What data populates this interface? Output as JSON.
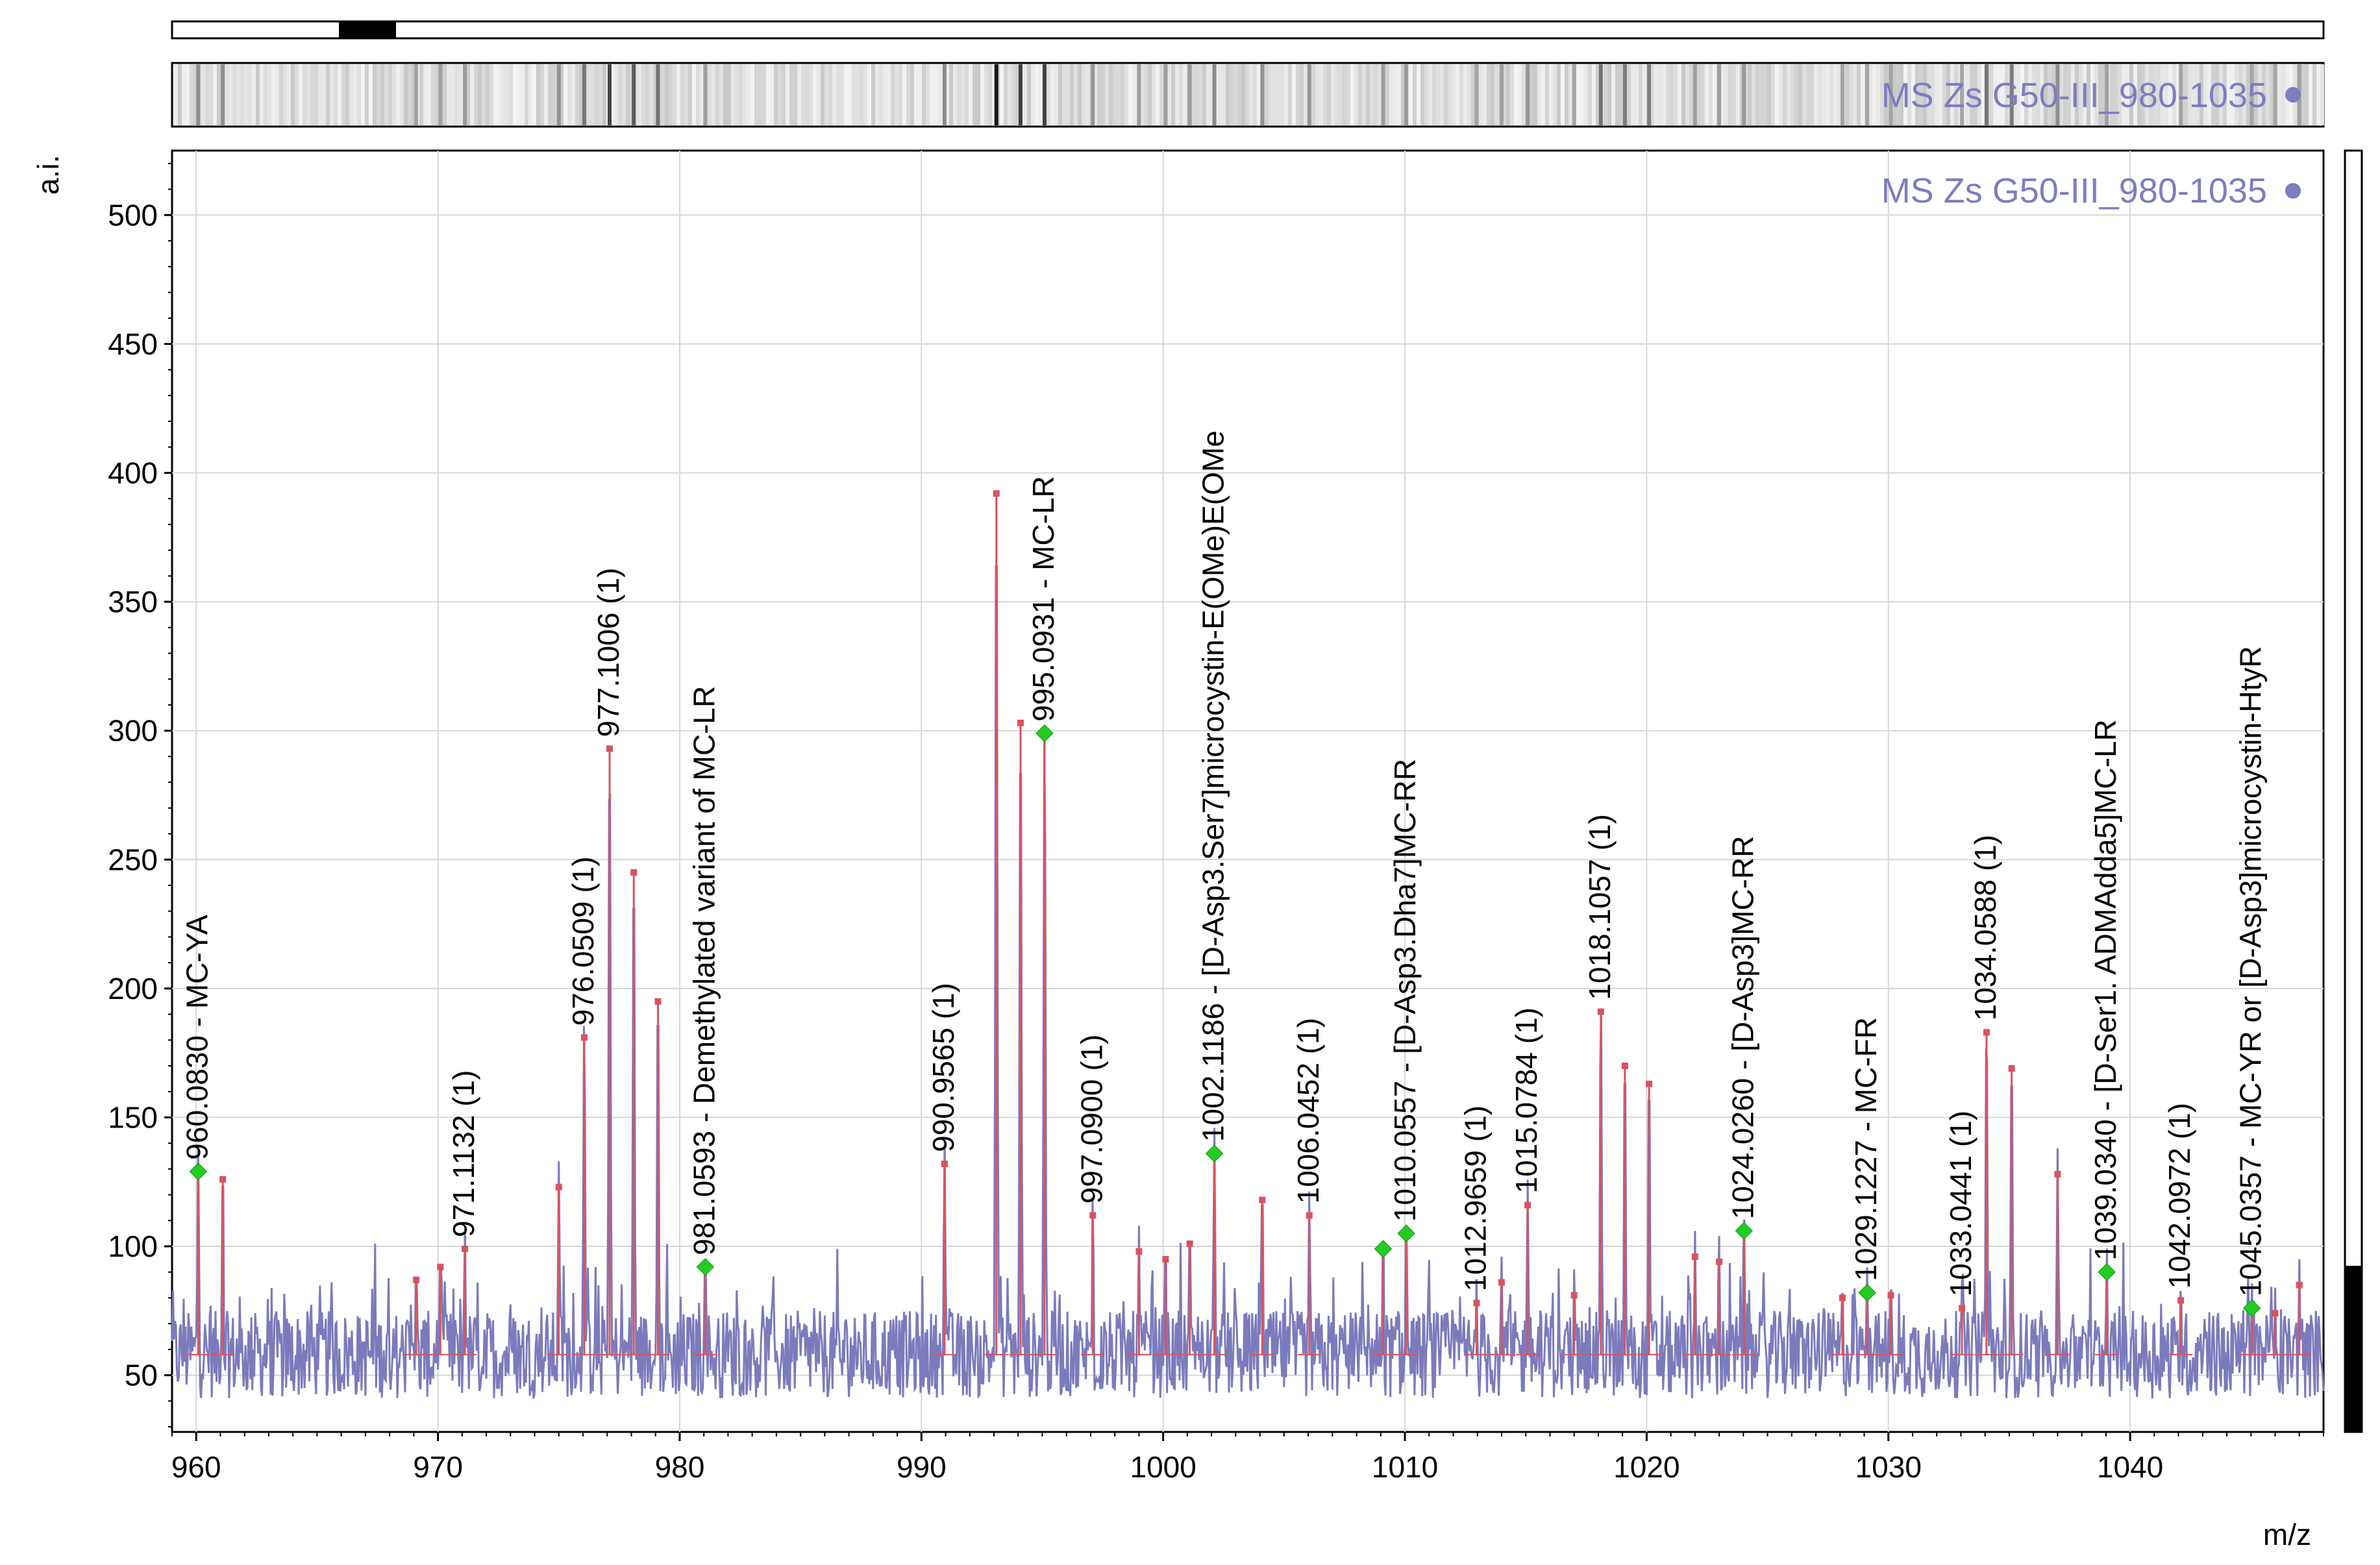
{
  "chart_data": {
    "type": "line",
    "title": "MS Zs G50-III_980-1035",
    "xlabel": "m/z",
    "ylabel": "a.i.",
    "xlim": [
      959,
      1048
    ],
    "ylim": [
      28,
      525
    ],
    "xticks": [
      960,
      970,
      980,
      990,
      1000,
      1010,
      1020,
      1030,
      1040
    ],
    "yticks": [
      50,
      100,
      150,
      200,
      250,
      300,
      350,
      400,
      450,
      500
    ],
    "grid": true,
    "legend_position": "top-right",
    "colors": {
      "spectrum": "#7b7bbc",
      "peaks": "#d9535f",
      "identified_marker": "#22cc22",
      "title": "#7d7dc0"
    },
    "peaks": [
      {
        "mz": 960.083,
        "intensity": 129,
        "label": "960.0830 - MC-YA",
        "identified": true
      },
      {
        "mz": 961.1,
        "intensity": 126,
        "label": ""
      },
      {
        "mz": 969.1,
        "intensity": 87,
        "label": ""
      },
      {
        "mz": 970.1,
        "intensity": 92,
        "label": ""
      },
      {
        "mz": 971.1132,
        "intensity": 99,
        "label": "971.1132 (1)"
      },
      {
        "mz": 975.0,
        "intensity": 123,
        "label": ""
      },
      {
        "mz": 976.0509,
        "intensity": 181,
        "label": "976.0509 (1)"
      },
      {
        "mz": 977.1006,
        "intensity": 293,
        "label": "977.1006 (1)"
      },
      {
        "mz": 978.1,
        "intensity": 245,
        "label": ""
      },
      {
        "mz": 979.1,
        "intensity": 195,
        "label": ""
      },
      {
        "mz": 981.0593,
        "intensity": 92,
        "label": "981.0593 - Demethylated variant of  MC-LR",
        "identified": true
      },
      {
        "mz": 990.9565,
        "intensity": 132,
        "label": "990.9565 (1)"
      },
      {
        "mz": 993.1,
        "intensity": 392,
        "label": ""
      },
      {
        "mz": 994.1,
        "intensity": 303,
        "label": ""
      },
      {
        "mz": 995.0931,
        "intensity": 299,
        "label": "995.0931 - MC-LR",
        "identified": true
      },
      {
        "mz": 997.09,
        "intensity": 112,
        "label": "997.0900 (1)"
      },
      {
        "mz": 999.0,
        "intensity": 98,
        "label": ""
      },
      {
        "mz": 1000.1,
        "intensity": 95,
        "label": ""
      },
      {
        "mz": 1001.1,
        "intensity": 101,
        "label": ""
      },
      {
        "mz": 1002.1186,
        "intensity": 136,
        "label": "1002.1186 - [D-Asp3.Ser7]microcystin-E(OMe)E(OMe",
        "identified": true
      },
      {
        "mz": 1004.1,
        "intensity": 118,
        "label": ""
      },
      {
        "mz": 1006.0452,
        "intensity": 112,
        "label": "1006.0452 (1)"
      },
      {
        "mz": 1009.1,
        "intensity": 99,
        "label": "",
        "identified": true
      },
      {
        "mz": 1010.0557,
        "intensity": 105,
        "label": "1010.0557 - [D-Asp3.Dha7]MC-RR",
        "identified": true
      },
      {
        "mz": 1012.9659,
        "intensity": 78,
        "label": "1012.9659 (1)"
      },
      {
        "mz": 1014.0,
        "intensity": 86,
        "label": ""
      },
      {
        "mz": 1015.0784,
        "intensity": 116,
        "label": "1015.0784 (1)"
      },
      {
        "mz": 1017.0,
        "intensity": 81,
        "label": ""
      },
      {
        "mz": 1018.1057,
        "intensity": 191,
        "label": "1018.1057 (1)"
      },
      {
        "mz": 1019.1,
        "intensity": 170,
        "label": ""
      },
      {
        "mz": 1020.1,
        "intensity": 163,
        "label": ""
      },
      {
        "mz": 1022.0,
        "intensity": 96,
        "label": ""
      },
      {
        "mz": 1023.0,
        "intensity": 94,
        "label": ""
      },
      {
        "mz": 1024.026,
        "intensity": 106,
        "label": "1024.0260 - [D-Asp3]MC-RR",
        "identified": true
      },
      {
        "mz": 1028.1,
        "intensity": 80,
        "label": ""
      },
      {
        "mz": 1029.1227,
        "intensity": 82,
        "label": "1029.1227 - MC-FR",
        "identified": true
      },
      {
        "mz": 1030.1,
        "intensity": 81,
        "label": ""
      },
      {
        "mz": 1033.0441,
        "intensity": 76,
        "label": "1033.0441 (1)"
      },
      {
        "mz": 1034.0588,
        "intensity": 183,
        "label": "1034.0588 (1)"
      },
      {
        "mz": 1035.1,
        "intensity": 169,
        "label": ""
      },
      {
        "mz": 1037.0,
        "intensity": 128,
        "label": ""
      },
      {
        "mz": 1039.034,
        "intensity": 90,
        "label": "1039.0340 - [D-Ser1. ADMAdda5]MC-LR",
        "identified": true
      },
      {
        "mz": 1042.0972,
        "intensity": 79,
        "label": "1042.0972 (1)"
      },
      {
        "mz": 1045.0357,
        "intensity": 76,
        "label": "1045.0357 - MC-YR or [D-Asp3]microcystin-HtyR",
        "identified": true
      },
      {
        "mz": 1046.0,
        "intensity": 74,
        "label": ""
      },
      {
        "mz": 1047.0,
        "intensity": 85,
        "label": ""
      }
    ]
  }
}
